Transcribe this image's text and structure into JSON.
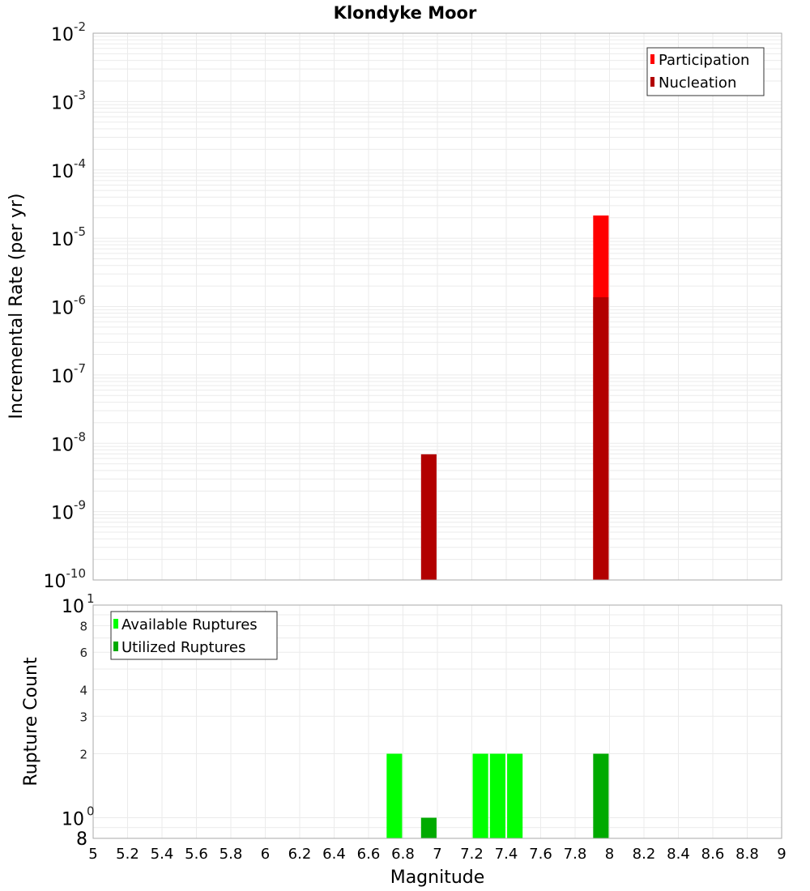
{
  "chart_data": [
    {
      "type": "bar",
      "title": "Klondyke Moor",
      "xlabel": "Magnitude",
      "ylabel": "Incremental Rate (per yr)",
      "yscale": "log",
      "ylim": [
        1e-10,
        0.01
      ],
      "xlim": [
        5,
        9
      ],
      "grid": true,
      "legend_position": "upper right",
      "x_ticks": [
        "5",
        "5.2",
        "5.4",
        "5.6",
        "5.8",
        "6",
        "6.2",
        "6.4",
        "6.6",
        "6.8",
        "7",
        "7.2",
        "7.4",
        "7.6",
        "7.8",
        "8",
        "8.2",
        "8.4",
        "8.6",
        "8.8",
        "9"
      ],
      "y_ticks": [
        {
          "base": "10",
          "exp": "-2"
        },
        {
          "base": "10",
          "exp": "-3"
        },
        {
          "base": "10",
          "exp": "-4"
        },
        {
          "base": "10",
          "exp": "-5"
        },
        {
          "base": "10",
          "exp": "-6"
        },
        {
          "base": "10",
          "exp": "-7"
        },
        {
          "base": "10",
          "exp": "-8"
        },
        {
          "base": "10",
          "exp": "-9"
        },
        {
          "base": "10",
          "exp": "-10"
        }
      ],
      "series": [
        {
          "name": "Participation",
          "color": "#ff0000",
          "points": [
            {
              "x": 7.95,
              "y": 2.15e-05
            }
          ]
        },
        {
          "name": "Nucleation",
          "color": "#b20000",
          "points": [
            {
              "x": 6.95,
              "y": 6.9e-09
            },
            {
              "x": 7.95,
              "y": 1.37e-06
            }
          ]
        }
      ]
    },
    {
      "type": "bar",
      "title": "",
      "xlabel": "Magnitude",
      "ylabel": "Rupture Count",
      "yscale": "log",
      "ylim": [
        0.8,
        10
      ],
      "xlim": [
        5,
        9
      ],
      "grid": true,
      "legend_position": "upper left",
      "y_ticks_major": [
        {
          "base": "10",
          "exp": "1"
        },
        {
          "base": "10",
          "exp": "0"
        }
      ],
      "y_ticks_minor": [
        "8",
        "6",
        "4",
        "3",
        "2"
      ],
      "y_bottom_label": "8",
      "series": [
        {
          "name": "Available Ruptures",
          "color": "#00ff00",
          "points": [
            {
              "x": 6.75,
              "y": 2
            },
            {
              "x": 7.25,
              "y": 2
            },
            {
              "x": 7.35,
              "y": 2
            },
            {
              "x": 7.45,
              "y": 2
            }
          ]
        },
        {
          "name": "Utilized Ruptures",
          "color": "#00aa00",
          "points": [
            {
              "x": 6.95,
              "y": 1
            },
            {
              "x": 7.95,
              "y": 2
            }
          ]
        }
      ]
    }
  ]
}
